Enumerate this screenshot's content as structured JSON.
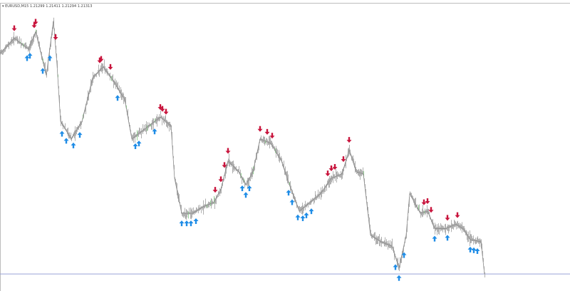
{
  "header": {
    "symbol_line": "EURUSD,M15  1.21299  1.21411  1.21294  1.21313",
    "menu_icon": "triangle-down-icon"
  },
  "chart_data": {
    "type": "line",
    "title": "EURUSD,M15",
    "ohlc_last": {
      "open": 1.21299,
      "high": 1.21411,
      "low": 1.21294,
      "close": 1.21313
    },
    "xlim": [
      0,
      800
    ],
    "ylim": [
      1.21235,
      1.22565
    ],
    "grid": false,
    "line_color": "#9e9e9e",
    "current_price_line": {
      "value": 1.21313,
      "color": "#9aa3d6"
    },
    "bars": [
      0,
      20,
      40,
      50,
      65,
      75,
      80,
      85,
      100,
      115,
      130,
      145,
      160,
      175,
      185,
      205,
      225,
      240,
      245,
      255,
      270,
      285,
      300,
      310,
      320,
      335,
      345,
      355,
      365,
      380,
      395,
      405,
      420,
      435,
      450,
      465,
      480,
      490,
      500,
      510,
      520,
      535,
      550,
      560,
      570,
      575,
      590,
      600,
      610,
      625,
      640,
      650,
      660,
      675,
      680
    ],
    "prices": [
      1.2232,
      1.2239,
      1.2234,
      1.2242,
      1.2222,
      1.2247,
      1.2227,
      1.2201,
      1.2193,
      1.2201,
      1.2221,
      1.2226,
      1.2219,
      1.2211,
      1.2193,
      1.2198,
      1.2203,
      1.2199,
      1.2175,
      1.2159,
      1.2159,
      1.2162,
      1.2164,
      1.217,
      1.2183,
      1.2178,
      1.2172,
      1.2178,
      1.2193,
      1.2191,
      1.2183,
      1.2173,
      1.216,
      1.2164,
      1.2168,
      1.2175,
      1.2177,
      1.2188,
      1.2178,
      1.2177,
      1.2149,
      1.2146,
      1.2144,
      1.2134,
      1.2149,
      1.2168,
      1.2159,
      1.216,
      1.2152,
      1.2152,
      1.2154,
      1.2152,
      1.2147,
      1.2146,
      1.21313
    ],
    "sell_arrows": {
      "color": "#c8143c",
      "bars": [
        20,
        48,
        50,
        78,
        140,
        142,
        155,
        225,
        228,
        233,
        302,
        310,
        315,
        320,
        365,
        375,
        382,
        460,
        465,
        470,
        482,
        490,
        595,
        600,
        605,
        628,
        642
      ]
    },
    "buy_arrows": {
      "color": "#1e8ce6",
      "bars": [
        38,
        42,
        60,
        70,
        87,
        93,
        103,
        112,
        165,
        190,
        195,
        217,
        255,
        262,
        268,
        275,
        340,
        345,
        350,
        405,
        410,
        418,
        425,
        430,
        437,
        555,
        560,
        567,
        610,
        628,
        660,
        665,
        670
      ]
    }
  }
}
